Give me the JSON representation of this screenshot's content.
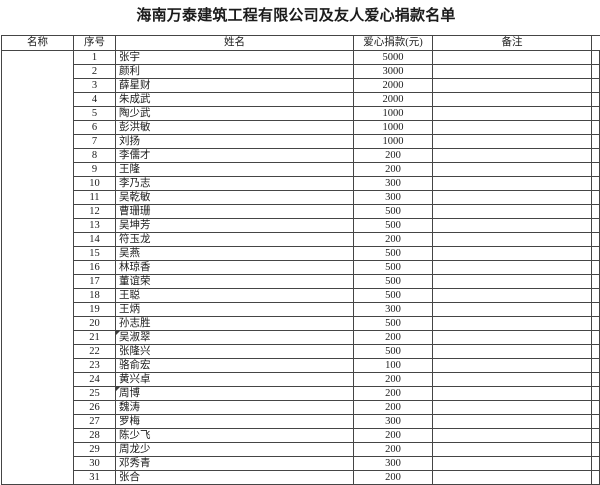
{
  "title": "海南万泰建筑工程有限公司及友人爱心捐款名单",
  "colors": {
    "border": "#454545",
    "text": "#1b1b1b",
    "background": "#ffffff"
  },
  "table": {
    "headers": {
      "name": "名称",
      "index": "序号",
      "person": "姓名",
      "amount": "爱心捐款(元)",
      "remark": "备注"
    },
    "merged_name_cell": "",
    "rows": [
      {
        "no": "1",
        "person": "张宇",
        "amount": "5000",
        "remark": ""
      },
      {
        "no": "2",
        "person": "颜利",
        "amount": "3000",
        "remark": ""
      },
      {
        "no": "3",
        "person": "薛星财",
        "amount": "2000",
        "remark": ""
      },
      {
        "no": "4",
        "person": "朱成武",
        "amount": "2000",
        "remark": ""
      },
      {
        "no": "5",
        "person": "陶少武",
        "amount": "1000",
        "remark": ""
      },
      {
        "no": "6",
        "person": "彭洪敏",
        "amount": "1000",
        "remark": ""
      },
      {
        "no": "7",
        "person": "刘扬",
        "amount": "1000",
        "remark": ""
      },
      {
        "no": "8",
        "person": "李儒才",
        "amount": "200",
        "remark": ""
      },
      {
        "no": "9",
        "person": "王隆",
        "amount": "200",
        "remark": ""
      },
      {
        "no": "10",
        "person": "李乃志",
        "amount": "300",
        "remark": ""
      },
      {
        "no": "11",
        "person": "吴乾敏",
        "amount": "300",
        "remark": ""
      },
      {
        "no": "12",
        "person": "曹珊珊",
        "amount": "500",
        "remark": ""
      },
      {
        "no": "13",
        "person": "吴坤芳",
        "amount": "500",
        "remark": ""
      },
      {
        "no": "14",
        "person": "符玉龙",
        "amount": "200",
        "remark": ""
      },
      {
        "no": "15",
        "person": "吴燕",
        "amount": "500",
        "remark": ""
      },
      {
        "no": "16",
        "person": "林琼香",
        "amount": "500",
        "remark": ""
      },
      {
        "no": "17",
        "person": "董谊荣",
        "amount": "500",
        "remark": ""
      },
      {
        "no": "18",
        "person": "王聪",
        "amount": "500",
        "remark": ""
      },
      {
        "no": "19",
        "person": "王炳",
        "amount": "300",
        "remark": ""
      },
      {
        "no": "20",
        "person": "孙志胜",
        "amount": "500",
        "remark": ""
      },
      {
        "no": "21",
        "person": "吴淑翠",
        "amount": "200",
        "remark": "",
        "mark": true
      },
      {
        "no": "22",
        "person": "张隆兴",
        "amount": "500",
        "remark": ""
      },
      {
        "no": "23",
        "person": "骆俞宏",
        "amount": "100",
        "remark": ""
      },
      {
        "no": "24",
        "person": "黄兴卓",
        "amount": "200",
        "remark": ""
      },
      {
        "no": "25",
        "person": "周博",
        "amount": "200",
        "remark": "",
        "mark": true
      },
      {
        "no": "26",
        "person": "魏涛",
        "amount": "200",
        "remark": ""
      },
      {
        "no": "27",
        "person": "罗梅",
        "amount": "300",
        "remark": ""
      },
      {
        "no": "28",
        "person": "陈少飞",
        "amount": "200",
        "remark": ""
      },
      {
        "no": "29",
        "person": "周龙少",
        "amount": "200",
        "remark": ""
      },
      {
        "no": "30",
        "person": "邓秀青",
        "amount": "300",
        "remark": ""
      },
      {
        "no": "31",
        "person": "张合",
        "amount": "200",
        "remark": ""
      }
    ]
  }
}
